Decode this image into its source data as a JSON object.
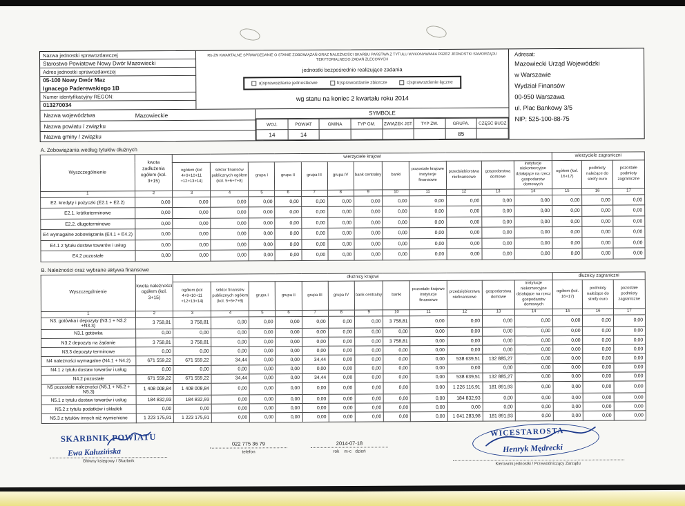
{
  "header": {
    "unit": {
      "name_label": "Nazwa jednostki sprawozdawczej",
      "name_value": "Starostwo Powiatowe Nowy Dwór Mazowiecki",
      "address_label": "Adres jednostki sprawozdawczej",
      "address_line1": "05-100 Nowy Dwór Maz",
      "address_line2": "Ignacego Paderewskiego 1B",
      "regon_label": "Numer identyfikacyjny REGON:",
      "regon_value": "013270034"
    },
    "form": {
      "title": "Rb-ZN KWARTALNE SPRAWOZDANIE O STANIE ZOBOWIĄZAŃ ORAZ NALEŻNOŚCI SKARBU PAŃSTWA Z TYTUŁU WYKONYWANIA PRZEZ JEDNOSTKI SAMORZĄDU TERYTORIALNEGO ZADAŃ ZLECONYCH",
      "subtitle": "jednostki bezpośrednio realizujące zadania",
      "checkboxes": [
        "a)sprawozdanie jednostkowe",
        "b)sprawozdanie zbiorcze",
        "c)sprawozdanie łączne"
      ],
      "period": "wg stanu na koniec 2 kwartału roku 2014"
    },
    "addressee": {
      "label": "Adresat:",
      "lines": [
        "Mazowiecki Urząd Wojewódzki",
        "w Warszawie",
        "Wydział Finansów",
        "00-950 Warszawa",
        "ul. Plac Bankowy 3/5",
        "NIP: 525-100-88-75"
      ]
    },
    "region": {
      "voivodeship_label": "Nazwa województwa",
      "voivodeship_value": "Mazowieckie",
      "powiat_label": "Nazwa powiatu / związku",
      "gmina_label": "Nazwa gminy / związku"
    },
    "symbols": {
      "title": "SYMBOLE",
      "columns": [
        "WOJ.",
        "POWIAT",
        "GMINA",
        "TYP GM.",
        "ZWIĄZEK JST",
        "TYP ZW.",
        "GRUPA.",
        "CZĘŚĆ BUDŻ"
      ],
      "values": [
        "14",
        "14",
        "",
        "",
        "",
        "",
        "85",
        ""
      ]
    }
  },
  "table_common": {
    "col1_header": "Wyszczególnienie",
    "domestic_subheaders": [
      "ogółem (kol 4+9+10+11 +12+13+14)",
      "sektor finansów publicznych ogółem (kol. 5+6+7+8)",
      "grupa I",
      "grupa II",
      "grupa III",
      "grupa IV",
      "bank centralny",
      "banki",
      "pozostałe krajowe instytucje finansowe",
      "przedsiębiorstwa niefinansowe",
      "gospodarstwa domowe",
      "instytucje niekomercyjne działające na rzecz gospodarstw domowych"
    ],
    "foreign_subheaders": [
      "ogółem (kol. 16+17)",
      "podmioty należące do strefy euro",
      "pozostałe podmioty zagraniczne"
    ],
    "column_numbers": [
      "1",
      "2",
      "3",
      "4",
      "5",
      "6",
      "7",
      "8",
      "9",
      "10",
      "11",
      "12",
      "13",
      "14",
      "15",
      "16",
      "17"
    ]
  },
  "section_a": {
    "title": "A. Zobowiązania według tytułów dłużnych",
    "amount_header": "kwota zadłużenia ogółem (kol. 3+15)",
    "domestic_group": "wierzyciele krajowi",
    "foreign_group": "wierzyciele zagraniczni",
    "rows": [
      {
        "label": "E2.  kredyty i pożyczki (E2.1 + E2.2)",
        "values": [
          "0,00",
          "0,00",
          "0,00",
          "0,00",
          "0,00",
          "0,00",
          "0,00",
          "0,00",
          "0,00",
          "0,00",
          "0,00",
          "0,00",
          "0,00",
          "0,00",
          "0,00",
          "0,00"
        ]
      },
      {
        "label": "E2.1. krótkoterminowe",
        "values": [
          "0,00",
          "0,00",
          "0,00",
          "0,00",
          "0,00",
          "0,00",
          "0,00",
          "0,00",
          "0,00",
          "0,00",
          "0,00",
          "0,00",
          "0,00",
          "0,00",
          "0,00",
          "0,00"
        ]
      },
      {
        "label": "E2.2. długoterminowe",
        "values": [
          "0,00",
          "0,00",
          "0,00",
          "0,00",
          "0,00",
          "0,00",
          "0,00",
          "0,00",
          "0,00",
          "0,00",
          "0,00",
          "0,00",
          "0,00",
          "0,00",
          "0,00",
          "0,00"
        ]
      },
      {
        "label": "E4 wymagalne zobowiązania  (E4.1 + E4.2)",
        "values": [
          "0,00",
          "0,00",
          "0,00",
          "0,00",
          "0,00",
          "0,00",
          "0,00",
          "0,00",
          "0,00",
          "0,00",
          "0,00",
          "0,00",
          "0,00",
          "0,00",
          "0,00",
          "0,00"
        ]
      },
      {
        "label": "E4.1 z tytułu dostaw towarów i usług",
        "values": [
          "0,00",
          "0,00",
          "0,00",
          "0,00",
          "0,00",
          "0,00",
          "0,00",
          "0,00",
          "0,00",
          "0,00",
          "0,00",
          "0,00",
          "0,00",
          "0,00",
          "0,00",
          "0,00"
        ]
      },
      {
        "label": "E4.2 pozostałe",
        "values": [
          "0,00",
          "0,00",
          "0,00",
          "0,00",
          "0,00",
          "0,00",
          "0,00",
          "0,00",
          "0,00",
          "0,00",
          "0,00",
          "0,00",
          "0,00",
          "0,00",
          "0,00",
          "0,00"
        ]
      }
    ]
  },
  "section_b": {
    "title": "B. Należności oraz wybrane aktywa finansowe",
    "amount_header": "kwota należności ogółem (kol. 3+15)",
    "domestic_group": "dłużnicy krajowi",
    "foreign_group": "dłużnicy zagraniczni",
    "rows": [
      {
        "label": "N3. gotówka i depozyty  (N3.1 + N3.2 +N3.3)",
        "values": [
          "3 758,81",
          "3 758,81",
          "0,00",
          "0,00",
          "0,00",
          "0,00",
          "0,00",
          "0,00",
          "3 758,81",
          "0,00",
          "0,00",
          "0,00",
          "0,00",
          "0,00",
          "0,00",
          "0,00"
        ]
      },
      {
        "label": "N3.1 gotówka",
        "values": [
          "0,00",
          "0,00",
          "0,00",
          "0,00",
          "0,00",
          "0,00",
          "0,00",
          "0,00",
          "0,00",
          "0,00",
          "0,00",
          "0,00",
          "0,00",
          "0,00",
          "0,00",
          "0,00"
        ]
      },
      {
        "label": "N3.2 depozyty na żądanie",
        "values": [
          "3 758,81",
          "3 758,81",
          "0,00",
          "0,00",
          "0,00",
          "0,00",
          "0,00",
          "0,00",
          "3 758,81",
          "0,00",
          "0,00",
          "0,00",
          "0,00",
          "0,00",
          "0,00",
          "0,00"
        ]
      },
      {
        "label": "N3.3 depozyty terminowe",
        "values": [
          "0,00",
          "0,00",
          "0,00",
          "0,00",
          "0,00",
          "0,00",
          "0,00",
          "0,00",
          "0,00",
          "0,00",
          "0,00",
          "0,00",
          "0,00",
          "0,00",
          "0,00",
          "0,00"
        ]
      },
      {
        "label": "N4 należności wymagalne (N4.1 + N4.2)",
        "values": [
          "671 559,22",
          "671 559,22",
          "34,44",
          "0,00",
          "0,00",
          "34,44",
          "0,00",
          "0,00",
          "0,00",
          "0,00",
          "538 639,51",
          "132 885,27",
          "0,00",
          "0,00",
          "0,00",
          "0,00"
        ]
      },
      {
        "label": "N4.1 z tytułu dostaw towarów i usług",
        "values": [
          "0,00",
          "0,00",
          "0,00",
          "0,00",
          "0,00",
          "0,00",
          "0,00",
          "0,00",
          "0,00",
          "0,00",
          "0,00",
          "0,00",
          "0,00",
          "0,00",
          "0,00",
          "0,00"
        ]
      },
      {
        "label": "N4.2 pozostałe",
        "values": [
          "671 559,22",
          "671 559,22",
          "34,44",
          "0,00",
          "0,00",
          "34,44",
          "0,00",
          "0,00",
          "0,00",
          "0,00",
          "538 639,51",
          "132 885,27",
          "0,00",
          "0,00",
          "0,00",
          "0,00"
        ]
      },
      {
        "label": "N5 pozostałe należności (N5.1 + N5.2 + N5.3)",
        "values": [
          "1 408 008,84",
          "1 408 008,84",
          "0,00",
          "0,00",
          "0,00",
          "0,00",
          "0,00",
          "0,00",
          "0,00",
          "0,00",
          "1 226 116,91",
          "181 891,93",
          "0,00",
          "0,00",
          "0,00",
          "0,00"
        ]
      },
      {
        "label": "N5.1 z tytułu dostaw towarów i usług",
        "values": [
          "184 832,93",
          "184 832,93",
          "0,00",
          "0,00",
          "0,00",
          "0,00",
          "0,00",
          "0,00",
          "0,00",
          "0,00",
          "184 832,93",
          "0,00",
          "0,00",
          "0,00",
          "0,00",
          "0,00"
        ]
      },
      {
        "label": "N5.2 z tytułu podatków i składek",
        "values": [
          "0,00",
          "0,00",
          "0,00",
          "0,00",
          "0,00",
          "0,00",
          "0,00",
          "0,00",
          "0,00",
          "0,00",
          "0,00",
          "0,00",
          "0,00",
          "0,00",
          "0,00",
          "0,00"
        ]
      },
      {
        "label": "N5.3 z tytułów innych niż wymienione",
        "values": [
          "1 223 175,91",
          "1 223 175,91",
          "0,00",
          "0,00",
          "0,00",
          "0,00",
          "0,00",
          "0,00",
          "0,00",
          "0,00",
          "1 041 283,98",
          "181 891,93",
          "0,00",
          "0,00",
          "0,00",
          "0,00"
        ]
      }
    ]
  },
  "footer": {
    "left_stamp": "SKARBNIK POWIATU",
    "left_signature": "Ewa Kałuzińska",
    "left_label": "Główny księgowy / Skarbnik",
    "phone_value": "022 775 36 79",
    "phone_label": "telefon",
    "date_value": "2014-07-18",
    "date_label": "rok    m-c   dzień",
    "right_stamp": "WICESTAROSTA",
    "right_signature": "Henryk Mędrecki",
    "right_label": "Kierownik jednostki / Przewodniczący Zarządu",
    "stamp_color": "#23408e",
    "ink_color": "#1d3a8c"
  }
}
